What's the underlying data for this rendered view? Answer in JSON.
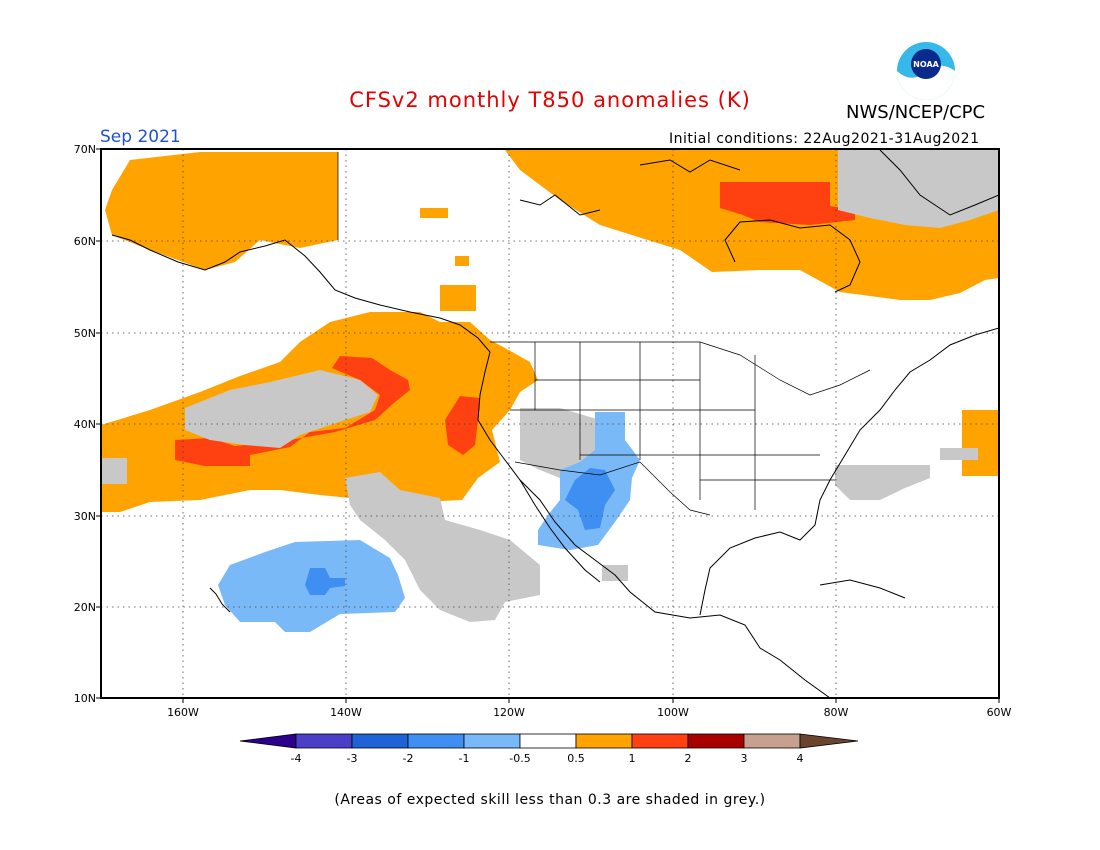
{
  "title": "CFSv2 monthly T850 anomalies (K)",
  "organization": "NWS/NCEP/CPC",
  "logo_text": "NOAA",
  "forecast_month": "Sep 2021",
  "initial_conditions": "Initial conditions: 22Aug2021-31Aug2021",
  "footnote": "(Areas of expected skill less than 0.3 are shaded in grey.)",
  "map": {
    "lat_range": [
      10,
      70
    ],
    "lon_range": [
      -170,
      -60
    ],
    "lat_labels": [
      "70N",
      "60N",
      "50N",
      "40N",
      "30N",
      "20N",
      "10N"
    ],
    "lon_labels": [
      "160W",
      "140W",
      "120W",
      "100W",
      "80W",
      "60W"
    ]
  },
  "colorbar": {
    "labels": [
      "-4",
      "-3",
      "-2",
      "-1",
      "-0.5",
      "0.5",
      "1",
      "2",
      "3",
      "4"
    ],
    "colors": [
      "#2a008c",
      "#4b3fc8",
      "#1f63d6",
      "#3f8ef2",
      "#7ab9f7",
      "#ffffff",
      "#ffa300",
      "#ff4010",
      "#a80000",
      "#c8a090",
      "#6b4430"
    ]
  },
  "legend_colors": {
    "low_skill": "#c8c8c8",
    "warm": "#ffa300",
    "hot": "#ff4010",
    "cool": "#7ab9f7",
    "cold": "#3f8ef2"
  }
}
